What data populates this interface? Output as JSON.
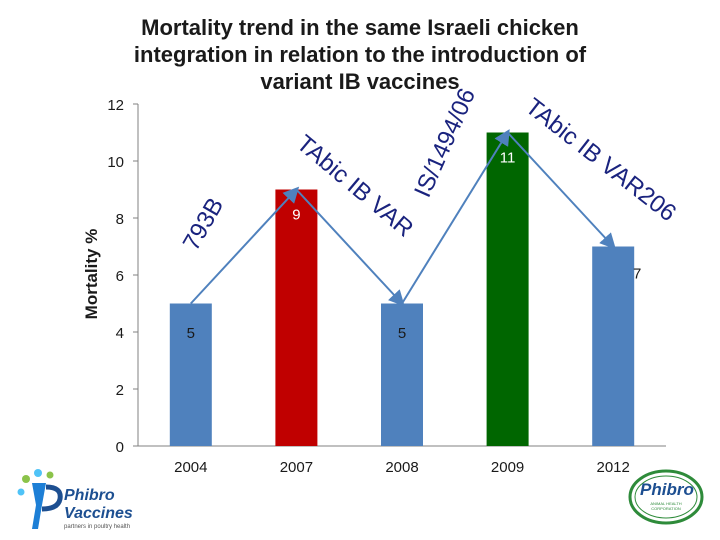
{
  "chart_data": {
    "type": "bar",
    "title": "Mortality trend in the same Israeli chicken integration in relation to the introduction of variant IB vaccines",
    "title_lines": [
      "Mortality trend in the same Israeli chicken",
      "integration in relation to the introduction of",
      "variant IB vaccines"
    ],
    "xlabel": "",
    "ylabel": "Mortality %",
    "ylim": [
      0,
      12
    ],
    "yticks": [
      0,
      2,
      4,
      6,
      8,
      10,
      12
    ],
    "grid": false,
    "categories": [
      "2004",
      "2007",
      "2008",
      "2009",
      "2012"
    ],
    "values": [
      5,
      9,
      5,
      11,
      7
    ],
    "data_labels": [
      "5",
      "9",
      "5",
      "11",
      "7"
    ],
    "bar_colors": [
      "#4f81bd",
      "#c00000",
      "#4f81bd",
      "#006600",
      "#4f81bd"
    ],
    "annotations": [
      {
        "text": "793B",
        "color": "#1a237e"
      },
      {
        "text": "TAbic IB VAR",
        "color": "#1a237e"
      },
      {
        "text": "IS/1494/06",
        "color": "#1a237e"
      },
      {
        "text": "TAbic IB VAR206",
        "color": "#1a237e"
      }
    ],
    "arrow_color": "#4f81bd"
  },
  "logos": {
    "left_name": "Phibro",
    "left_sub": "Vaccines",
    "left_tagline": "partners in poultry health",
    "right_name": "Phibro",
    "right_sub": "ANIMAL HEALTH CORPORATION"
  }
}
